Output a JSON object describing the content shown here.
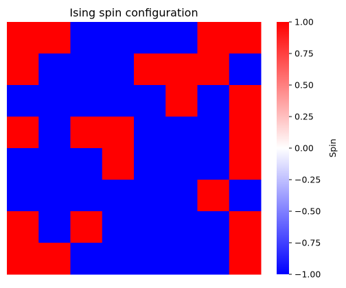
{
  "chart_data": {
    "type": "heatmap",
    "title": "Ising spin configuration",
    "rows": 8,
    "cols": 8,
    "grid": false,
    "values": [
      [
        1,
        1,
        -1,
        -1,
        -1,
        -1,
        1,
        1
      ],
      [
        1,
        -1,
        -1,
        -1,
        1,
        1,
        1,
        -1
      ],
      [
        -1,
        -1,
        -1,
        -1,
        -1,
        1,
        -1,
        1
      ],
      [
        1,
        -1,
        1,
        1,
        -1,
        -1,
        -1,
        1
      ],
      [
        -1,
        -1,
        -1,
        1,
        -1,
        -1,
        -1,
        1
      ],
      [
        -1,
        -1,
        -1,
        -1,
        -1,
        -1,
        1,
        -1
      ],
      [
        1,
        -1,
        1,
        -1,
        -1,
        -1,
        -1,
        1
      ],
      [
        1,
        1,
        -1,
        -1,
        -1,
        -1,
        -1,
        1
      ]
    ],
    "colormap": {
      "name": "bwr",
      "low_color": "#0000ff",
      "mid_color": "#ffffff",
      "high_color": "#ff0000",
      "vmin": -1.0,
      "vmax": 1.0
    },
    "colorbar": {
      "label": "Spin",
      "ticks": [
        -1.0,
        -0.75,
        -0.5,
        -0.25,
        0.0,
        0.25,
        0.5,
        0.75,
        1.0
      ],
      "tick_labels": [
        "−1.00",
        "−0.75",
        "−0.50",
        "−0.25",
        "0.00",
        "0.25",
        "0.50",
        "0.75",
        "1.00"
      ]
    }
  }
}
